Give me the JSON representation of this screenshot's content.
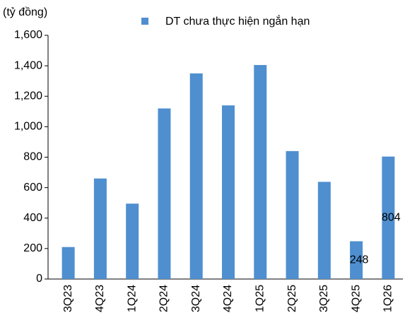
{
  "chart_data": {
    "type": "bar",
    "y_axis_label": "(tỷ đồng)",
    "categories": [
      "3Q23",
      "4Q23",
      "1Q24",
      "2Q24",
      "3Q24",
      "4Q24",
      "1Q25",
      "2Q25",
      "3Q25",
      "4Q25",
      "1Q26"
    ],
    "series": [
      {
        "name": "DT chưa thực hiện ngắn hạn",
        "color": "#4f8fd0",
        "values": [
          210,
          660,
          495,
          1120,
          1350,
          1140,
          1405,
          840,
          638,
          248,
          804
        ],
        "value_labels": [
          null,
          null,
          null,
          null,
          null,
          null,
          null,
          null,
          null,
          "248",
          "804"
        ]
      }
    ],
    "ylim": [
      0,
      1600
    ],
    "yticks": [
      0,
      200,
      400,
      600,
      800,
      {
        "value": 1000,
        "label": "1,000"
      },
      {
        "value": 1200,
        "label": "1,200"
      },
      {
        "value": 1400,
        "label": "1,400"
      },
      {
        "value": 1600,
        "label": "1,600"
      }
    ],
    "grid": false
  }
}
